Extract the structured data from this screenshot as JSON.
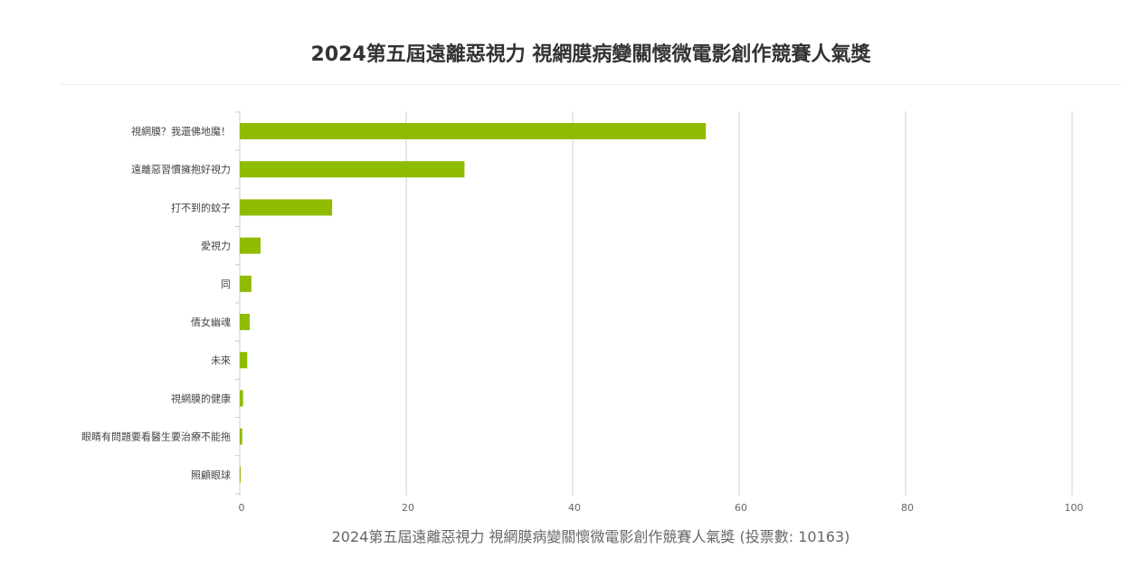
{
  "chart_data": {
    "type": "bar",
    "orientation": "horizontal",
    "title": "2024第五屆遠離惡視力 視網膜病變關懷微電影創作競賽人氣獎",
    "xlabel": "2024第五屆遠離惡視力 視網膜病變關懷微電影創作競賽人氣獎 (投票數: 10163)",
    "ylabel": "",
    "categories": [
      "視網膜？我還佛地魔！",
      "遠離惡習慣擁抱好視力",
      "打不到的蚊子",
      "愛視力",
      "同",
      "倩女幽魂",
      "未來",
      "視網膜的健康",
      "眼睛有問題要看醫生要治療不能拖",
      "照顧眼球"
    ],
    "values": [
      56.0,
      27.0,
      11.1,
      2.5,
      1.4,
      1.2,
      0.9,
      0.4,
      0.3,
      0.1
    ],
    "xlim": [
      0,
      100
    ],
    "ticks": [
      0,
      20,
      40,
      60,
      80,
      100
    ],
    "grid": true,
    "bar_color": "#8fbc00",
    "grid_color": "#d0d0d0"
  }
}
